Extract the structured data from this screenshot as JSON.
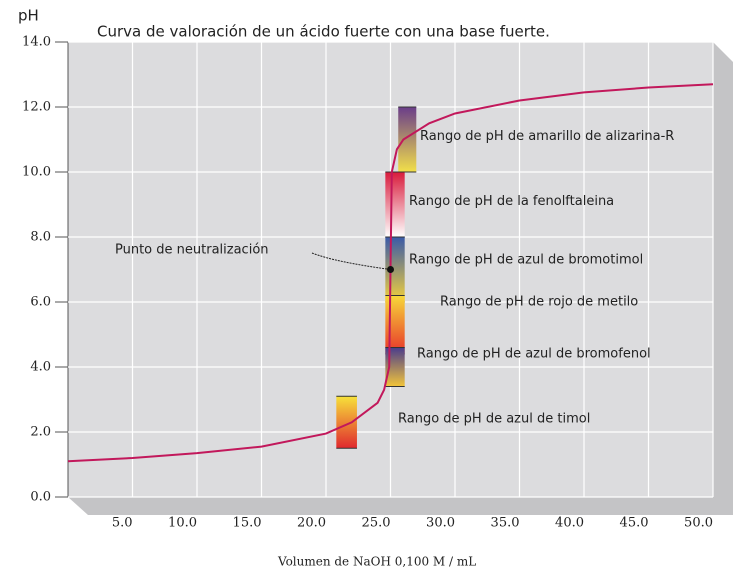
{
  "chart_data": {
    "type": "line",
    "title": "Curva de valoración de un ácido fuerte con una base fuerte.",
    "y_label": "pH",
    "x_label": "Volumen de NaOH 0,100 M / mL",
    "x": [
      0,
      5,
      10,
      15,
      20,
      22,
      24,
      24.5,
      24.9,
      25,
      25.1,
      25.5,
      26,
      28,
      30,
      35,
      40,
      45,
      50
    ],
    "values": [
      1.1,
      1.2,
      1.35,
      1.55,
      1.95,
      2.3,
      2.9,
      3.3,
      4.0,
      7.0,
      10.0,
      10.7,
      11.0,
      11.5,
      11.8,
      12.2,
      12.45,
      12.6,
      12.7
    ],
    "color": "#c2185b",
    "xlim": [
      0,
      50
    ],
    "ylim": [
      0,
      14
    ],
    "xticks": [
      {
        "value": 5,
        "label": "5.0"
      },
      {
        "value": 10,
        "label": "10.0"
      },
      {
        "value": 15,
        "label": "15.0"
      },
      {
        "value": 20,
        "label": "20.0"
      },
      {
        "value": 25,
        "label": "25.0"
      },
      {
        "value": 30,
        "label": "30.0"
      },
      {
        "value": 35,
        "label": "35.0"
      },
      {
        "value": 40,
        "label": "40.0"
      },
      {
        "value": 45,
        "label": "45.0"
      },
      {
        "value": 50,
        "label": "50.0"
      }
    ],
    "yticks": [
      {
        "value": 0,
        "label": "0.0"
      },
      {
        "value": 2,
        "label": "2.0"
      },
      {
        "value": 4,
        "label": "4.0"
      },
      {
        "value": 6,
        "label": "6.0"
      },
      {
        "value": 8,
        "label": "8.0"
      },
      {
        "value": 10,
        "label": "10.0"
      },
      {
        "value": 12,
        "label": "12.0"
      },
      {
        "value": 14,
        "label": "14.0"
      }
    ],
    "grid": true,
    "annotation": {
      "text": "Punto de neutralización",
      "x": 25,
      "y": 7
    },
    "ranges": [
      {
        "name": "Rango de pH de amarillo de alizarina-R",
        "x": [
          25.6,
          27
        ],
        "values": [
          10,
          12
        ],
        "colors": [
          "#f2e04a",
          "#6a3d8a"
        ]
      },
      {
        "name": "Rango de pH de la fenolftaleina",
        "x": [
          24.6,
          26.1
        ],
        "values": [
          8,
          10
        ],
        "colors": [
          "#ffffff",
          "#d81b3c"
        ]
      },
      {
        "name": "Rango de pH de azul de bromotimol",
        "x": [
          24.6,
          26.1
        ],
        "values": [
          6,
          8
        ],
        "colors": [
          "#f5d23a",
          "#3a5aa8"
        ]
      },
      {
        "name": "Rango de pH de rojo de metilo",
        "x": [
          24.6,
          26.1
        ],
        "values": [
          4.4,
          6.2
        ],
        "colors": [
          "#e8322a",
          "#f7d83a"
        ]
      },
      {
        "name": "Rango de pH de azul de bromofenol",
        "x": [
          24.6,
          26.1
        ],
        "values": [
          3.4,
          4.6
        ],
        "colors": [
          "#f2c53a",
          "#4a3c8c"
        ]
      },
      {
        "name": "Rango de pH de azul de timol",
        "x": [
          20.8,
          22.4
        ],
        "values": [
          1.5,
          3.1
        ],
        "colors": [
          "#e0282e",
          "#f7e23a"
        ]
      }
    ]
  }
}
